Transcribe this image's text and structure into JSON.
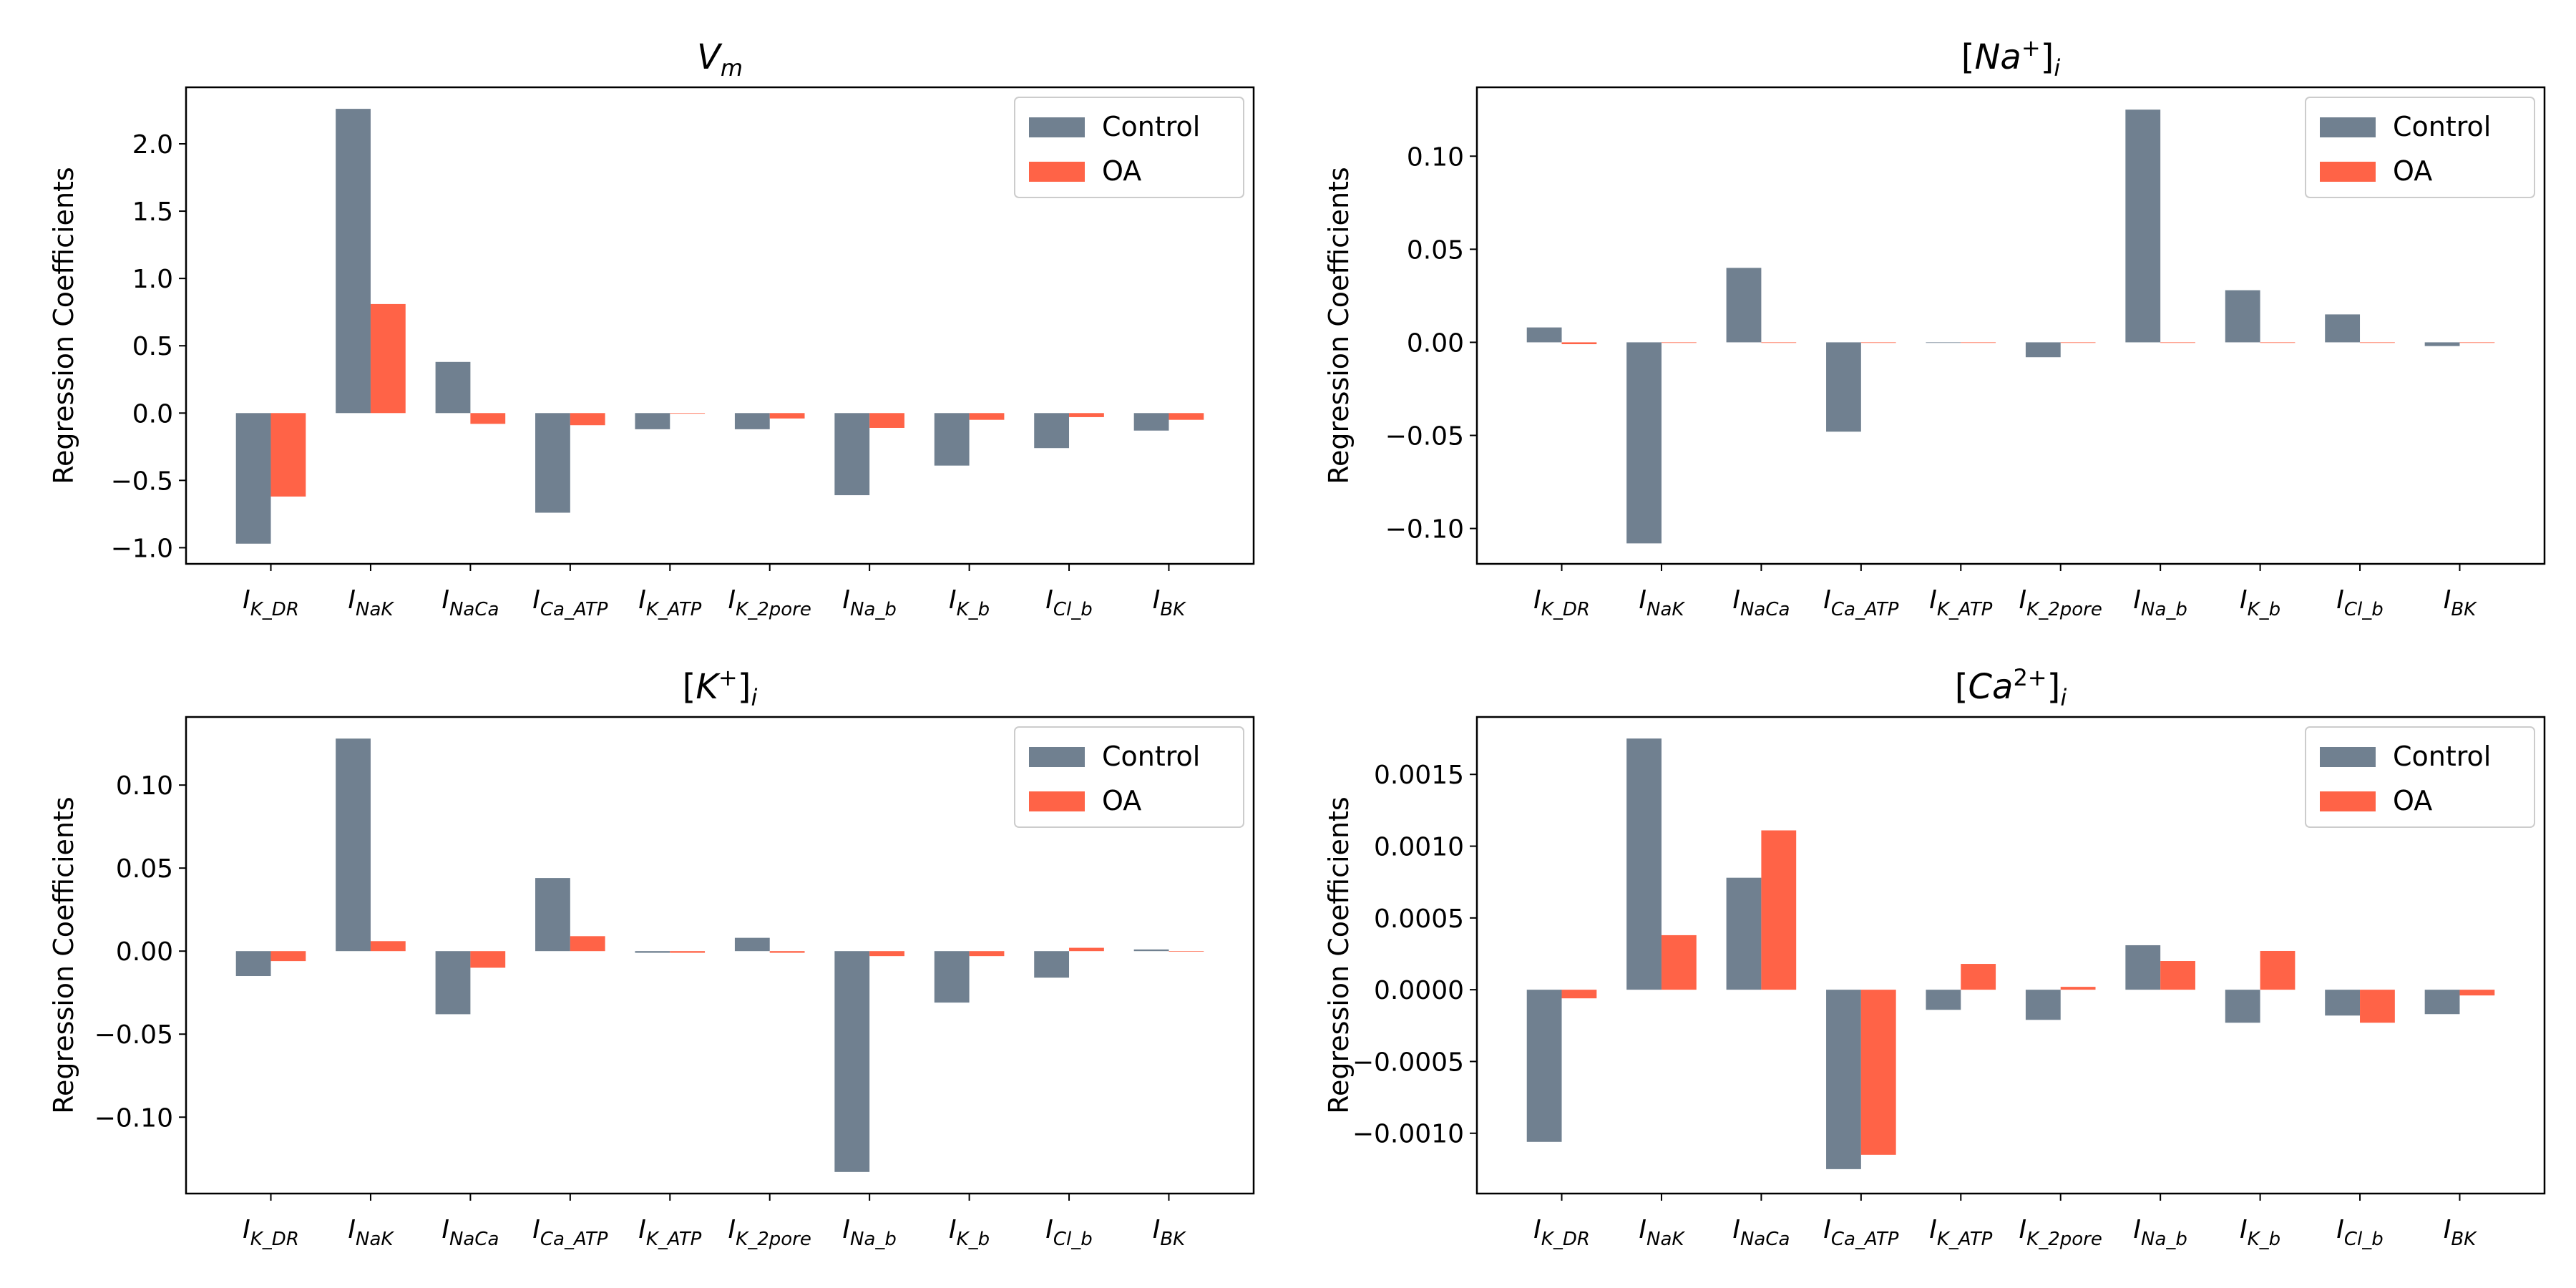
{
  "colors": {
    "control": "#708090",
    "oa": "#ff6347"
  },
  "chart_data": [
    {
      "type": "bar",
      "title_main": "V",
      "title_sub": "m",
      "title_sup": "",
      "brackets": false,
      "ylabel": "Regression Coefficients",
      "categories": [
        {
          "main": "I",
          "sub": "K_DR"
        },
        {
          "main": "I",
          "sub": "NaK"
        },
        {
          "main": "I",
          "sub": "NaCa"
        },
        {
          "main": "I",
          "sub": "Ca_ATP"
        },
        {
          "main": "I",
          "sub": "K_ATP"
        },
        {
          "main": "I",
          "sub": "K_2pore"
        },
        {
          "main": "I",
          "sub": "Na_b"
        },
        {
          "main": "I",
          "sub": "K_b"
        },
        {
          "main": "I",
          "sub": "Cl_b"
        },
        {
          "main": "I",
          "sub": "BK"
        }
      ],
      "series": [
        {
          "name": "Control",
          "values": [
            -0.97,
            2.26,
            0.38,
            -0.74,
            -0.12,
            -0.12,
            -0.61,
            -0.39,
            -0.26,
            -0.13
          ]
        },
        {
          "name": "OA",
          "values": [
            -0.62,
            0.81,
            -0.08,
            -0.09,
            0.0,
            -0.04,
            -0.11,
            -0.05,
            -0.03,
            -0.05
          ]
        }
      ],
      "ylim": [
        -1.12,
        2.42
      ],
      "yticks": [
        -1.0,
        -0.5,
        0.0,
        0.5,
        1.0,
        1.5,
        2.0
      ],
      "ytick_labels": [
        "−1.0",
        "−0.5",
        "0.0",
        "0.5",
        "1.0",
        "1.5",
        "2.0"
      ],
      "legend": "top-right"
    },
    {
      "type": "bar",
      "title_main": "Na",
      "title_sub": "i",
      "title_sup": "+",
      "brackets": true,
      "ylabel": "Regression Coefficients",
      "categories": [
        {
          "main": "I",
          "sub": "K_DR"
        },
        {
          "main": "I",
          "sub": "NaK"
        },
        {
          "main": "I",
          "sub": "NaCa"
        },
        {
          "main": "I",
          "sub": "Ca_ATP"
        },
        {
          "main": "I",
          "sub": "K_ATP"
        },
        {
          "main": "I",
          "sub": "K_2pore"
        },
        {
          "main": "I",
          "sub": "Na_b"
        },
        {
          "main": "I",
          "sub": "K_b"
        },
        {
          "main": "I",
          "sub": "Cl_b"
        },
        {
          "main": "I",
          "sub": "BK"
        }
      ],
      "series": [
        {
          "name": "Control",
          "values": [
            0.008,
            -0.108,
            0.04,
            -0.048,
            0.0,
            -0.008,
            0.125,
            0.028,
            0.015,
            -0.002
          ]
        },
        {
          "name": "OA",
          "values": [
            -0.001,
            0.0,
            0.0,
            0.0,
            0.0,
            0.0,
            0.0,
            0.0,
            0.0,
            0.0
          ]
        }
      ],
      "ylim": [
        -0.119,
        0.137
      ],
      "yticks": [
        -0.1,
        -0.05,
        0.0,
        0.05,
        0.1
      ],
      "ytick_labels": [
        "−0.10",
        "−0.05",
        "0.00",
        "0.05",
        "0.10"
      ],
      "legend": "top-right"
    },
    {
      "type": "bar",
      "title_main": "K",
      "title_sub": "i",
      "title_sup": "+",
      "brackets": true,
      "ylabel": "Regression Coefficients",
      "categories": [
        {
          "main": "I",
          "sub": "K_DR"
        },
        {
          "main": "I",
          "sub": "NaK"
        },
        {
          "main": "I",
          "sub": "NaCa"
        },
        {
          "main": "I",
          "sub": "Ca_ATP"
        },
        {
          "main": "I",
          "sub": "K_ATP"
        },
        {
          "main": "I",
          "sub": "K_2pore"
        },
        {
          "main": "I",
          "sub": "Na_b"
        },
        {
          "main": "I",
          "sub": "K_b"
        },
        {
          "main": "I",
          "sub": "Cl_b"
        },
        {
          "main": "I",
          "sub": "BK"
        }
      ],
      "series": [
        {
          "name": "Control",
          "values": [
            -0.015,
            0.128,
            -0.038,
            0.044,
            -0.001,
            0.008,
            -0.133,
            -0.031,
            -0.016,
            0.001
          ]
        },
        {
          "name": "OA",
          "values": [
            -0.006,
            0.006,
            -0.01,
            0.009,
            -0.001,
            -0.001,
            -0.003,
            -0.003,
            0.002,
            0.0
          ]
        }
      ],
      "ylim": [
        -0.146,
        0.141
      ],
      "yticks": [
        -0.1,
        -0.05,
        0.0,
        0.05,
        0.1
      ],
      "ytick_labels": [
        "−0.10",
        "−0.05",
        "0.00",
        "0.05",
        "0.10"
      ],
      "legend": "top-right"
    },
    {
      "type": "bar",
      "title_main": "Ca",
      "title_sub": "i",
      "title_sup": "2+",
      "brackets": true,
      "ylabel": "Regression Coefficients",
      "categories": [
        {
          "main": "I",
          "sub": "K_DR"
        },
        {
          "main": "I",
          "sub": "NaK"
        },
        {
          "main": "I",
          "sub": "NaCa"
        },
        {
          "main": "I",
          "sub": "Ca_ATP"
        },
        {
          "main": "I",
          "sub": "K_ATP"
        },
        {
          "main": "I",
          "sub": "K_2pore"
        },
        {
          "main": "I",
          "sub": "Na_b"
        },
        {
          "main": "I",
          "sub": "K_b"
        },
        {
          "main": "I",
          "sub": "Cl_b"
        },
        {
          "main": "I",
          "sub": "BK"
        }
      ],
      "series": [
        {
          "name": "Control",
          "values": [
            -0.00106,
            0.00175,
            0.00078,
            -0.00125,
            -0.00014,
            -0.00021,
            0.00031,
            -0.00023,
            -0.00018,
            -0.00017
          ]
        },
        {
          "name": "OA",
          "values": [
            -6e-05,
            0.00038,
            0.00111,
            -0.00115,
            0.00018,
            2e-05,
            0.0002,
            0.00027,
            -0.00023,
            -4e-05
          ]
        }
      ],
      "ylim": [
        -0.00142,
        0.0019
      ],
      "yticks": [
        -0.001,
        -0.0005,
        0.0,
        0.0005,
        0.001,
        0.0015
      ],
      "ytick_labels": [
        "−0.0010",
        "−0.0005",
        "0.0000",
        "0.0005",
        "0.0010",
        "0.0015"
      ],
      "legend": "top-right"
    }
  ]
}
